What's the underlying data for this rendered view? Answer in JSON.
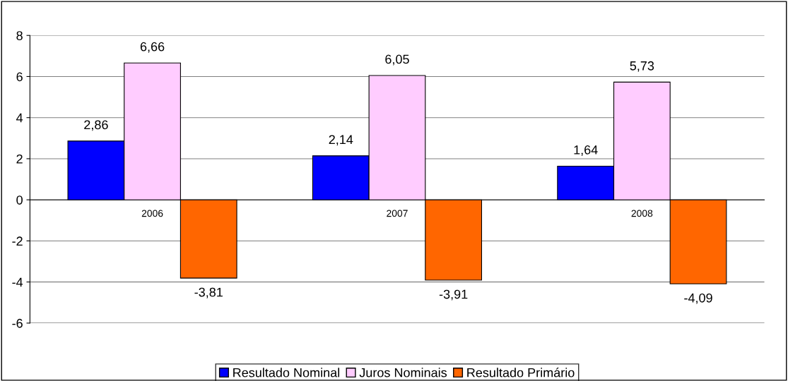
{
  "chart_data": {
    "type": "bar",
    "categories": [
      "2006",
      "2007",
      "2008"
    ],
    "series": [
      {
        "name": "Resultado Nominal",
        "color": "#0000ff",
        "values": [
          2.86,
          2.14,
          1.64
        ],
        "value_labels": [
          "2,86",
          "2,14",
          "1,64"
        ]
      },
      {
        "name": "Juros Nominais",
        "color": "#ffccff",
        "values": [
          6.66,
          6.05,
          5.73
        ],
        "value_labels": [
          "6,66",
          "6,05",
          "5,73"
        ]
      },
      {
        "name": "Resultado Primário",
        "color": "#ff6600",
        "values": [
          -3.81,
          -3.91,
          -4.09
        ],
        "value_labels": [
          "-3,81",
          "-3,91",
          "-4,09"
        ]
      }
    ],
    "ylim": [
      -6,
      8
    ],
    "yticks": [
      {
        "value": -6,
        "label": "-6"
      },
      {
        "value": -4,
        "label": "-4"
      },
      {
        "value": -2,
        "label": "-2"
      },
      0,
      2,
      4,
      6,
      8
    ],
    "grid": "y",
    "legend": "bottom"
  }
}
